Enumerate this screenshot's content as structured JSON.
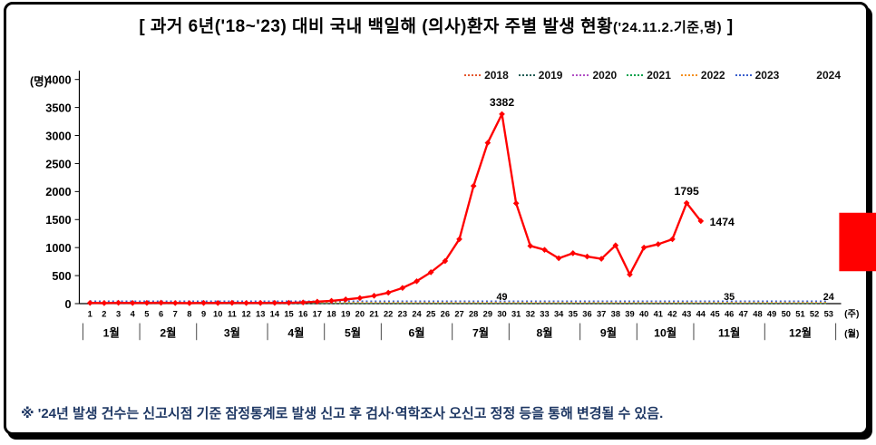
{
  "title": {
    "main": "[ 과거 6년('18~'23) 대비 국내 백일해 (의사)환자 주별 발생 현황",
    "paren": "('24.11.2.기준,명)",
    "close": " ]"
  },
  "note": "※ '24년 발생 건수는 신고시점 기준 잠정통계로 발생 신고 후 검사·역학조사 오신고 정정 등을 통해 변경될 수 있음.",
  "chart_data": {
    "type": "line",
    "y_unit": "(명)",
    "x_unit_week": "(주)",
    "x_unit_month": "(월)",
    "ylim": [
      0,
      4000
    ],
    "ytick_step": 500,
    "week_range": [
      1,
      53
    ],
    "grid": false,
    "legend_position": "top-right",
    "years": [
      {
        "label": "2018",
        "color": "#E4572E",
        "style": "dotted"
      },
      {
        "label": "2019",
        "color": "#1F5C54",
        "style": "dotted"
      },
      {
        "label": "2020",
        "color": "#B14FC5",
        "style": "dotted"
      },
      {
        "label": "2021",
        "color": "#00A14B",
        "style": "dotted"
      },
      {
        "label": "2022",
        "color": "#F4901E",
        "style": "dotted"
      },
      {
        "label": "2023",
        "color": "#3A5FCD",
        "style": "dotted"
      },
      {
        "label": "2024",
        "color": "#FF0000",
        "style": "solid-diamond"
      }
    ],
    "months": [
      {
        "label": "1월",
        "from": 1,
        "to": 4
      },
      {
        "label": "2월",
        "from": 5,
        "to": 8
      },
      {
        "label": "3월",
        "from": 9,
        "to": 13
      },
      {
        "label": "4월",
        "from": 14,
        "to": 17
      },
      {
        "label": "5월",
        "from": 18,
        "to": 21
      },
      {
        "label": "6월",
        "from": 22,
        "to": 26
      },
      {
        "label": "7월",
        "from": 27,
        "to": 30
      },
      {
        "label": "8월",
        "from": 31,
        "to": 35
      },
      {
        "label": "9월",
        "from": 36,
        "to": 39
      },
      {
        "label": "10월",
        "from": 40,
        "to": 43
      },
      {
        "label": "11월",
        "from": 44,
        "to": 48
      },
      {
        "label": "12월",
        "from": 49,
        "to": 53
      }
    ],
    "series_2024": {
      "name": "2024",
      "color": "#FF0000",
      "values": [
        13,
        10,
        15,
        11,
        13,
        16,
        11,
        9,
        12,
        11,
        14,
        11,
        12,
        13,
        15,
        21,
        35,
        50,
        75,
        100,
        140,
        195,
        280,
        400,
        560,
        760,
        1150,
        2100,
        2870,
        3382,
        1790,
        1030,
        960,
        810,
        900,
        840,
        800,
        1040,
        520,
        1000,
        1060,
        1150,
        1795,
        1474
      ]
    },
    "past_years": [
      {
        "name": "2018",
        "color": "#E4572E",
        "style": "dotted",
        "approx_level": 10
      },
      {
        "name": "2019",
        "color": "#1F5C54",
        "style": "dotted",
        "approx_level": 16
      },
      {
        "name": "2020",
        "color": "#B14FC5",
        "style": "dotted",
        "approx_level": 4
      },
      {
        "name": "2021",
        "color": "#00A14B",
        "style": "dotted",
        "approx_level": 7
      },
      {
        "name": "2022",
        "color": "#F4901E",
        "style": "dotted",
        "approx_level": 22
      },
      {
        "name": "2023",
        "color": "#3A5FCD",
        "style": "dotted",
        "approx_level": 45
      }
    ],
    "point_labels": [
      {
        "week": 30,
        "value": 3382,
        "text": "3382"
      },
      {
        "week": 43,
        "value": 1795,
        "text": "1795"
      },
      {
        "week": 44,
        "value": 1474,
        "text": "1474",
        "dx": 10,
        "dy": 5,
        "anchor": "start"
      }
    ],
    "baseline_labels": [
      {
        "week": 30,
        "text": "49"
      },
      {
        "week": 46,
        "text": "35"
      },
      {
        "week": 53,
        "text": "24"
      }
    ]
  }
}
